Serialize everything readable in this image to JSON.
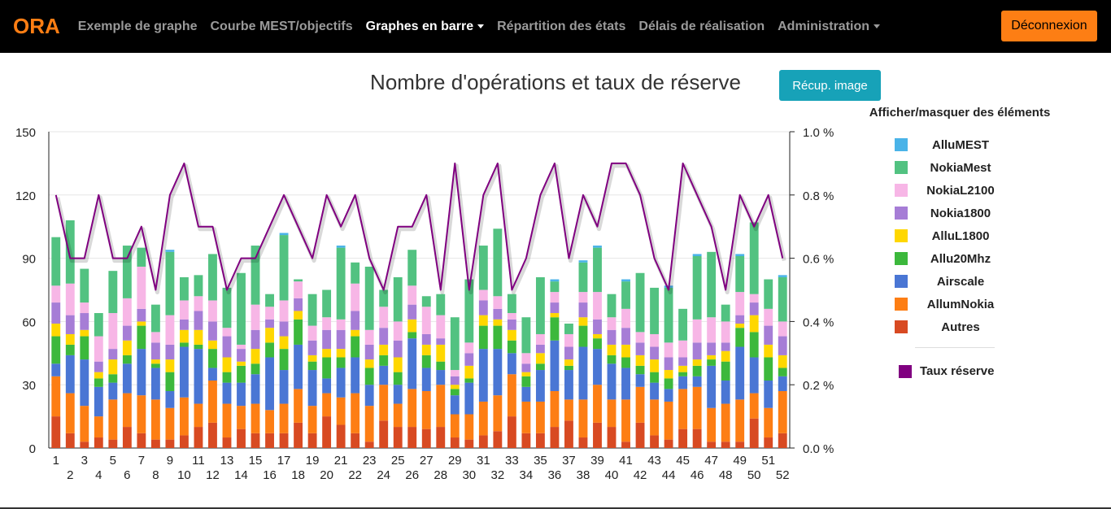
{
  "navbar": {
    "brand": "ORA",
    "items": [
      {
        "label": "Exemple de graphe",
        "active": false,
        "dropdown": false
      },
      {
        "label": "Courbe MEST/objectifs",
        "active": false,
        "dropdown": false
      },
      {
        "label": "Graphes en barre",
        "active": true,
        "dropdown": true
      },
      {
        "label": "Répartition des états",
        "active": false,
        "dropdown": false
      },
      {
        "label": "Délais de réalisation",
        "active": false,
        "dropdown": false
      },
      {
        "label": "Administration",
        "active": false,
        "dropdown": true
      }
    ],
    "logout_label": "Déconnexion"
  },
  "image_button_label": "Récup. image",
  "legend_title": "Afficher/masquer des éléments",
  "chart_data": {
    "type": "bar",
    "title": "Nombre d'opérations et taux de réserve",
    "stacked": true,
    "categories": [
      "1",
      "2",
      "3",
      "4",
      "5",
      "6",
      "7",
      "8",
      "9",
      "10",
      "11",
      "12",
      "13",
      "14",
      "15",
      "16",
      "17",
      "18",
      "19",
      "20",
      "21",
      "22",
      "23",
      "24",
      "25",
      "26",
      "27",
      "28",
      "29",
      "30",
      "31",
      "32",
      "33",
      "34",
      "35",
      "36",
      "37",
      "38",
      "39",
      "40",
      "41",
      "42",
      "43",
      "44",
      "45",
      "46",
      "47",
      "48",
      "49",
      "50",
      "51",
      "52"
    ],
    "ylim": [
      0,
      150
    ],
    "yticks": [
      0,
      30,
      60,
      90,
      120,
      150
    ],
    "y2lim": [
      0,
      1.0
    ],
    "y2ticks": [
      "0.0 %",
      "0.2 %",
      "0.4 %",
      "0.6 %",
      "0.8 %",
      "1.0 %"
    ],
    "grid": true,
    "legend_position": "right",
    "series": [
      {
        "name": "Autres",
        "color": "#d84a22",
        "values": [
          15,
          7,
          3,
          5,
          4,
          10,
          7,
          4,
          4,
          6,
          10,
          12,
          5,
          9,
          7,
          7,
          7,
          12,
          7,
          15,
          11,
          7,
          3,
          13,
          10,
          10,
          9,
          10,
          5,
          4,
          6,
          8,
          15,
          7,
          7,
          10,
          13,
          5,
          12,
          10,
          3,
          12,
          6,
          4,
          9,
          9,
          3,
          3,
          3,
          14,
          5,
          7
        ]
      },
      {
        "name": "AllumNokia",
        "color": "#fd7e14",
        "values": [
          19,
          19,
          17,
          10,
          19,
          16,
          18,
          19,
          15,
          18,
          11,
          20,
          16,
          11,
          14,
          11,
          14,
          16,
          13,
          11,
          13,
          19,
          17,
          17,
          11,
          18,
          18,
          20,
          11,
          12,
          16,
          17,
          20,
          15,
          15,
          17,
          10,
          18,
          18,
          13,
          20,
          17,
          17,
          18,
          19,
          20,
          16,
          18,
          20,
          12,
          14,
          20
        ]
      },
      {
        "name": "Airscale",
        "color": "#4a76d4",
        "values": [
          6,
          18,
          22,
          14,
          8,
          14,
          22,
          15,
          8,
          24,
          26,
          6,
          10,
          11,
          14,
          25,
          16,
          21,
          17,
          7,
          14,
          17,
          10,
          9,
          9,
          24,
          11,
          7,
          9,
          15,
          25,
          22,
          10,
          7,
          15,
          24,
          14,
          25,
          17,
          17,
          15,
          6,
          8,
          6,
          6,
          5,
          20,
          11,
          25,
          17,
          13,
          7
        ]
      },
      {
        "name": "Allu20Mhz",
        "color": "#3cb83c",
        "values": [
          13,
          5,
          11,
          4,
          4,
          4,
          11,
          2,
          9,
          2,
          2,
          9,
          5,
          8,
          5,
          7,
          10,
          12,
          4,
          10,
          5,
          10,
          8,
          5,
          6,
          3,
          6,
          4,
          3,
          2,
          11,
          11,
          6,
          5,
          3,
          11,
          2,
          10,
          5,
          4,
          5,
          4,
          5,
          5,
          2,
          5,
          3,
          9,
          9,
          12,
          11,
          4
        ]
      },
      {
        "name": "AlluL1800",
        "color": "#ffd700",
        "values": [
          6,
          5,
          3,
          3,
          7,
          7,
          2,
          2,
          6,
          6,
          7,
          4,
          7,
          2,
          7,
          7,
          6,
          4,
          3,
          4,
          4,
          3,
          4,
          5,
          7,
          6,
          5,
          8,
          2,
          6,
          5,
          3,
          5,
          2,
          5,
          2,
          3,
          4,
          2,
          5,
          6,
          5,
          6,
          4,
          3,
          3,
          2,
          5,
          2,
          8,
          6,
          6
        ]
      },
      {
        "name": "Nokia1800",
        "color": "#a67dd6",
        "values": [
          10,
          9,
          8,
          5,
          5,
          7,
          6,
          8,
          7,
          5,
          9,
          9,
          10,
          6,
          9,
          4,
          7,
          6,
          7,
          9,
          9,
          9,
          7,
          8,
          8,
          7,
          5,
          3,
          4,
          6,
          7,
          5,
          5,
          4,
          4,
          5,
          6,
          7,
          7,
          7,
          8,
          6,
          6,
          6,
          4,
          8,
          6,
          4,
          4,
          6,
          9,
          9
        ]
      },
      {
        "name": "NokiaL2100",
        "color": "#f7b6e6",
        "values": [
          8,
          15,
          5,
          12,
          17,
          13,
          20,
          5,
          14,
          9,
          7,
          10,
          4,
          2,
          12,
          6,
          10,
          8,
          7,
          6,
          5,
          13,
          7,
          10,
          9,
          9,
          13,
          11,
          3,
          5,
          5,
          6,
          3,
          5,
          5,
          5,
          6,
          5,
          13,
          6,
          9,
          5,
          6,
          7,
          8,
          11,
          12,
          10,
          11,
          4,
          8,
          7
        ]
      },
      {
        "name": "NokiaMest",
        "color": "#52c281",
        "values": [
          23,
          30,
          16,
          11,
          20,
          25,
          9,
          13,
          30,
          11,
          10,
          22,
          19,
          34,
          28,
          6,
          31,
          1,
          15,
          13,
          34,
          10,
          30,
          8,
          21,
          17,
          5,
          10,
          25,
          30,
          21,
          32,
          9,
          17,
          27,
          5,
          5,
          14,
          21,
          11,
          13,
          28,
          22,
          26,
          15,
          30,
          31,
          8,
          17,
          34,
          14,
          21
        ]
      },
      {
        "name": "AlluMEST",
        "color": "#4ab3e8",
        "values": [
          0,
          0,
          0,
          0,
          0,
          0,
          0,
          0,
          1,
          0,
          0,
          0,
          0,
          0,
          0,
          0,
          1,
          0,
          0,
          0,
          1,
          0,
          0,
          0,
          0,
          0,
          0,
          0,
          0,
          0,
          0,
          0,
          0,
          0,
          0,
          1,
          0,
          1,
          1,
          0,
          1,
          0,
          0,
          1,
          0,
          1,
          0,
          0,
          1,
          0,
          0,
          1
        ]
      }
    ],
    "line_series": {
      "name": "Taux réserve",
      "color": "#800080",
      "axis": "right",
      "values": [
        0.8,
        0.6,
        0.6,
        0.8,
        0.6,
        0.6,
        0.7,
        0.5,
        0.8,
        0.9,
        0.7,
        0.7,
        0.5,
        0.6,
        0.6,
        0.7,
        0.8,
        0.7,
        0.6,
        0.8,
        0.7,
        0.8,
        0.6,
        0.5,
        0.7,
        0.7,
        0.8,
        0.5,
        0.9,
        0.5,
        0.8,
        0.9,
        0.5,
        0.6,
        0.8,
        0.9,
        0.6,
        0.8,
        0.7,
        0.9,
        0.9,
        0.8,
        0.6,
        0.5,
        0.9,
        0.8,
        0.7,
        0.5,
        0.8,
        0.7,
        0.8,
        0.6
      ]
    },
    "legend_order": [
      "AlluMEST",
      "NokiaMest",
      "NokiaL2100",
      "Nokia1800",
      "AlluL1800",
      "Allu20Mhz",
      "Airscale",
      "AllumNokia",
      "Autres"
    ]
  }
}
